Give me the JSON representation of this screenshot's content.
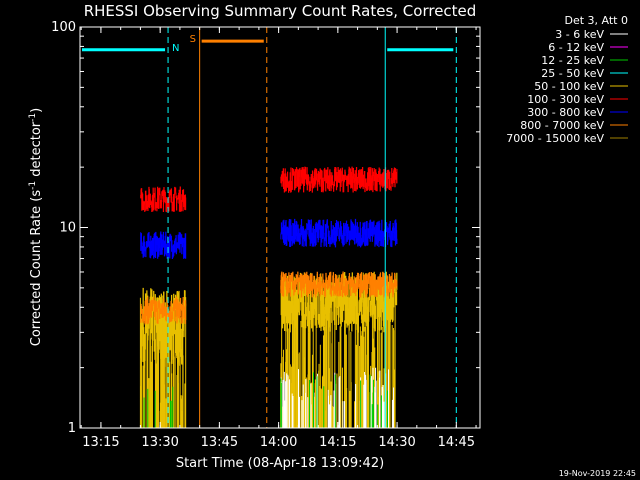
{
  "chart_data": {
    "type": "line",
    "title": "RHESSI Observing Summary Count Rates, Corrected",
    "xlabel": "Start Time (08-Apr-18 13:09:42)",
    "ylabel_main": "Corrected Count Rate (s",
    "ylabel_sup1": "-1",
    "ylabel_mid": " detector",
    "ylabel_sup2": "-1",
    "ylabel_end": ")",
    "yscale": "log",
    "ylim": [
      1,
      100
    ],
    "xlim": [
      "13:09:42",
      "14:51:00"
    ],
    "x_ticks": [
      "13:15",
      "13:30",
      "13:45",
      "14:00",
      "14:15",
      "14:30",
      "14:45"
    ],
    "y_ticks": [
      "1",
      "10",
      "100"
    ],
    "legend_title": "Det 3, Att 0",
    "series": [
      {
        "name": "3 - 6 keV",
        "color": "#ffffff"
      },
      {
        "name": "6 - 12 keV",
        "color": "#ff00ff"
      },
      {
        "name": "12 - 25 keV",
        "color": "#00c800"
      },
      {
        "name": "25 - 50 keV",
        "color": "#00ffff"
      },
      {
        "name": "50 - 100 keV",
        "color": "#e8c000"
      },
      {
        "name": "100 - 300 keV",
        "color": "#ff0000"
      },
      {
        "name": "300 - 800 keV",
        "color": "#0000ff"
      },
      {
        "name": "800 - 7000 keV",
        "color": "#ff8000"
      },
      {
        "name": "7000 - 15000 keV",
        "color": "#a08000"
      }
    ],
    "segments": [
      {
        "start": "13:25:00",
        "end": "13:36:30",
        "red": [
          12,
          16
        ],
        "blue": [
          7,
          9.5
        ],
        "orange": [
          3.3,
          4.5
        ],
        "yellow": [
          2,
          5
        ]
      },
      {
        "start": "14:00:30",
        "end": "14:30:00",
        "red": [
          15,
          20
        ],
        "blue": [
          8,
          11
        ],
        "orange": [
          4.5,
          6
        ],
        "yellow": [
          3,
          6
        ]
      }
    ],
    "annotations": [
      {
        "label": "N",
        "start": "13:09:42",
        "end": "13:32:00",
        "level": 77,
        "color": "#00ffff"
      },
      {
        "label": "S",
        "start": "13:40:00",
        "end": "13:57:00",
        "level": 85,
        "color": "#ff8000"
      },
      {
        "label": "",
        "start": "14:27:00",
        "end": "14:45:00",
        "level": 77,
        "color": "#00ffff"
      }
    ],
    "orbit_lines": [
      {
        "time": "13:09:42",
        "color": "#00ffff",
        "style": "solid"
      },
      {
        "time": "13:32:00",
        "color": "#00ffff",
        "style": "dashed"
      },
      {
        "time": "13:40:00",
        "color": "#ff8000",
        "style": "solid"
      },
      {
        "time": "13:57:00",
        "color": "#ff8000",
        "style": "dashed"
      },
      {
        "time": "14:27:00",
        "color": "#00ffff",
        "style": "solid"
      },
      {
        "time": "14:45:00",
        "color": "#00ffff",
        "style": "dashed"
      }
    ]
  },
  "timestamp": "19-Nov-2019 22:45"
}
